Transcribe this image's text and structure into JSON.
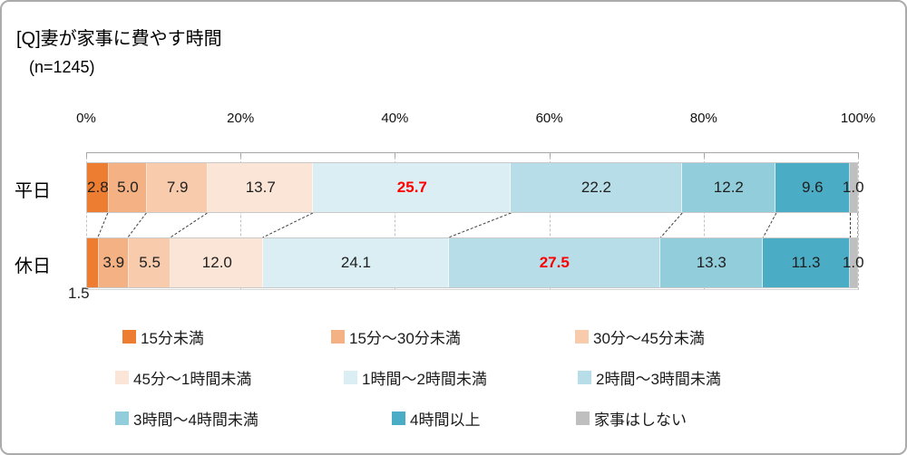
{
  "chart_data": {
    "type": "bar",
    "stacked": true,
    "orientation": "horizontal",
    "title": "[Q]妻が家事に費やす時間",
    "sample_label": "(n=1245)",
    "categories": [
      "平日",
      "休日"
    ],
    "x_ticks": [
      "0%",
      "20%",
      "40%",
      "60%",
      "80%",
      "100%"
    ],
    "xlim": [
      0,
      100
    ],
    "legend_position": "bottom",
    "highlight_color": "#FF0000",
    "series": [
      {
        "name": "15分未満",
        "color": "#ED7D31",
        "values": [
          2.8,
          1.5
        ]
      },
      {
        "name": "15分～30分未満",
        "color": "#F4B183",
        "values": [
          5.0,
          3.9
        ]
      },
      {
        "name": "30分～45分未満",
        "color": "#F8CBAD",
        "values": [
          7.9,
          5.5
        ]
      },
      {
        "name": "45分～1時間未満",
        "color": "#FBE5D6",
        "values": [
          13.7,
          12.0
        ]
      },
      {
        "name": "1時間～2時間未満",
        "color": "#DAEEF3",
        "values": [
          25.7,
          24.1
        ]
      },
      {
        "name": "2時間～3時間未満",
        "color": "#B6DDE8",
        "values": [
          22.2,
          27.5
        ]
      },
      {
        "name": "3時間～4時間未満",
        "color": "#92CDDC",
        "values": [
          12.2,
          13.3
        ]
      },
      {
        "name": "4時間以上",
        "color": "#4BACC6",
        "values": [
          9.6,
          11.3
        ]
      },
      {
        "name": "家事はしない",
        "color": "#BFBFBF",
        "values": [
          1.0,
          1.0
        ]
      }
    ],
    "highlight_labels": [
      {
        "category": "平日",
        "series": "1時間～2時間未満",
        "value": 25.7
      },
      {
        "category": "休日",
        "series": "2時間～3時間未満",
        "value": 27.5
      }
    ],
    "outside_labels": [
      {
        "category": "休日",
        "series": "15分未満",
        "value": 1.5,
        "position": "below-left"
      }
    ]
  }
}
